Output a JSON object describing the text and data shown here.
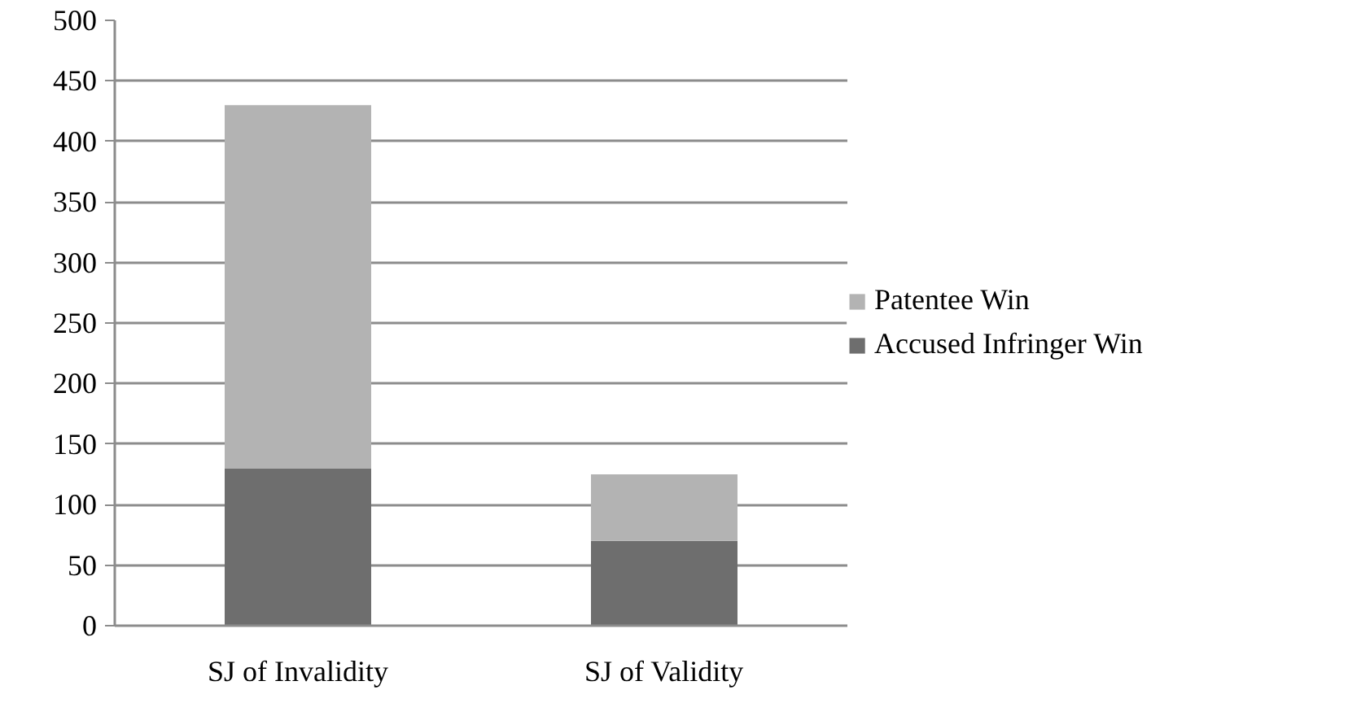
{
  "chart_data": {
    "type": "bar",
    "stacked": true,
    "categories": [
      "SJ of Invalidity",
      "SJ of Validity"
    ],
    "series": [
      {
        "name": "Accused Infringer Win",
        "color": "#6e6e6e",
        "values": [
          130,
          70
        ]
      },
      {
        "name": "Patentee Win",
        "color": "#b3b3b3",
        "values": [
          300,
          55
        ]
      }
    ],
    "ylim": [
      0,
      500
    ],
    "yticks": [
      0,
      50,
      100,
      150,
      200,
      250,
      300,
      350,
      400,
      450,
      500
    ],
    "grid": "y",
    "legend": "right"
  }
}
